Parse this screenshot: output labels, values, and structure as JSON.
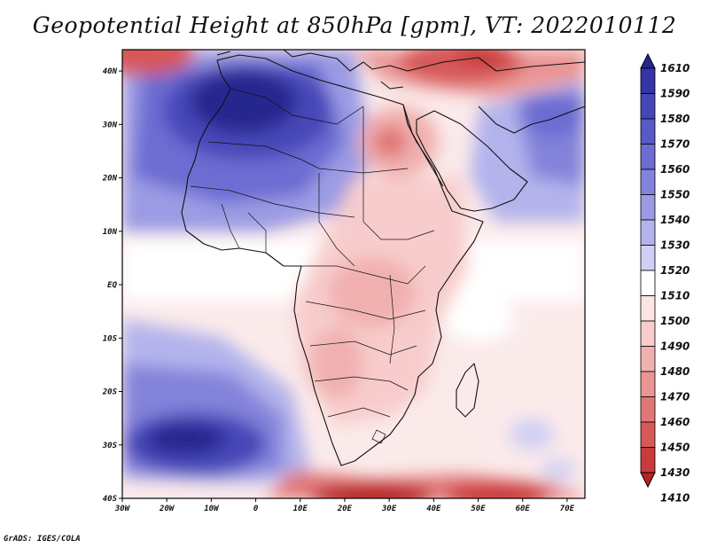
{
  "title": "Geopotential Height at 850hPa [gpm], VT: 2022010112",
  "credit": "GrADS: IGES/COLA",
  "x_ticks": [
    "30W",
    "20W",
    "10W",
    "0",
    "10E",
    "20E",
    "30E",
    "40E",
    "50E",
    "60E",
    "70E"
  ],
  "y_ticks": [
    "40N",
    "30N",
    "20N",
    "10N",
    "EQ",
    "10S",
    "20S",
    "30S",
    "40S"
  ],
  "colorbar": {
    "labels": [
      "1610",
      "1590",
      "1580",
      "1570",
      "1560",
      "1550",
      "1540",
      "1530",
      "1520",
      "1510",
      "1500",
      "1490",
      "1480",
      "1470",
      "1460",
      "1450",
      "1430",
      "1410"
    ],
    "colors": [
      "#26268f",
      "#3535a6",
      "#4646b8",
      "#5858c6",
      "#6c6cd2",
      "#8383db",
      "#9b9be4",
      "#b4b4ec",
      "#d0d0f4",
      "#ffffff",
      "#fce4e4",
      "#f8cccc",
      "#f1b0b0",
      "#ea9494",
      "#e17676",
      "#d75858",
      "#c93a3a",
      "#b82323"
    ]
  },
  "colors": {
    "frame": "#000000",
    "border_line": "#111111"
  }
}
